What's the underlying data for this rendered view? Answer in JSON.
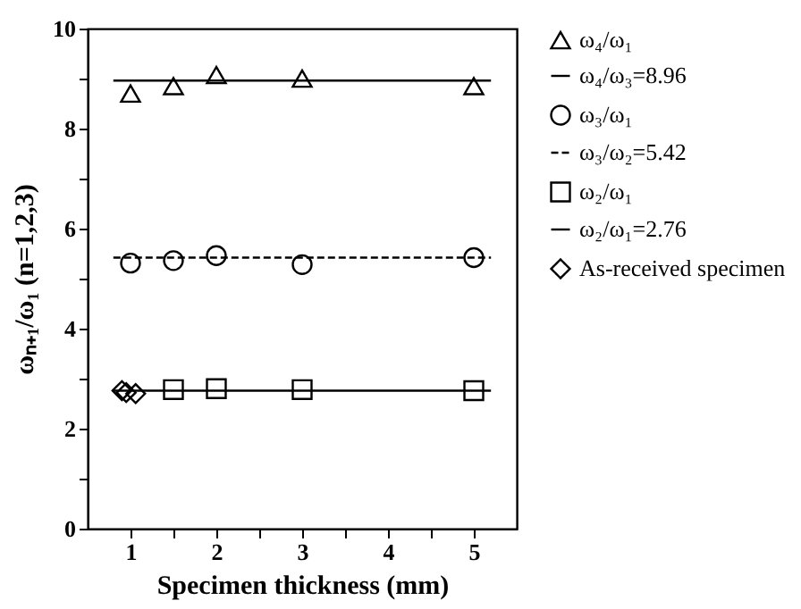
{
  "chart_data": {
    "type": "scatter",
    "xlabel": "Specimen thickness (mm)",
    "ylabel": "ωₙ₊₁/ω₁ (n=1,2,3)",
    "xlim": [
      0.5,
      5.5
    ],
    "ylim": [
      0,
      10
    ],
    "xticks": [
      1,
      {
        "value": 1.5,
        "label": null
      },
      2,
      {
        "value": 2.5,
        "label": null
      },
      3,
      {
        "value": 3.5,
        "label": null
      },
      4,
      {
        "value": 4.5,
        "label": null
      },
      5
    ],
    "yticks": [
      0,
      {
        "value": 1,
        "label": null
      },
      2,
      {
        "value": 3,
        "label": null
      },
      4,
      {
        "value": 5,
        "label": null
      },
      6,
      {
        "value": 7,
        "label": null
      },
      8,
      {
        "value": 9,
        "label": null
      },
      10
    ],
    "grid": false,
    "legend": "right",
    "series": [
      {
        "name": "ω₄/ω₁",
        "type": "scatter",
        "marker": "triangle",
        "color": "#000000",
        "x": [
          1,
          1.5,
          2,
          3,
          5
        ],
        "values": [
          8.7,
          8.85,
          9.07,
          9.0,
          8.85
        ]
      },
      {
        "name": "ω₄/ω₃=8.96",
        "type": "line",
        "line_style": "solid",
        "color": "#000000",
        "x": [
          0.8,
          5.2
        ],
        "values": [
          8.96,
          8.96
        ]
      },
      {
        "name": "ω₃/ω₁",
        "type": "scatter",
        "marker": "circle",
        "color": "#000000",
        "x": [
          1,
          1.5,
          2,
          3,
          5
        ],
        "values": [
          5.31,
          5.36,
          5.46,
          5.28,
          5.42
        ]
      },
      {
        "name": "ω₃/ω₂=5.42",
        "type": "line",
        "line_style": "dashed",
        "color": "#000000",
        "x": [
          0.8,
          5.2
        ],
        "values": [
          5.42,
          5.42
        ]
      },
      {
        "name": "ω₂/ω₁",
        "type": "scatter",
        "marker": "square",
        "color": "#000000",
        "x": [
          1.5,
          2,
          3,
          5
        ],
        "values": [
          2.78,
          2.8,
          2.78,
          2.76
        ]
      },
      {
        "name": "ω₂/ω₁=2.76",
        "type": "line",
        "line_style": "solid",
        "color": "#000000",
        "x": [
          0.8,
          5.2
        ],
        "values": [
          2.76,
          2.76
        ]
      },
      {
        "name": "As-received specimen",
        "type": "scatter",
        "marker": "diamond",
        "color": "#000000",
        "x": [
          0.9,
          0.95,
          1.06
        ],
        "values": [
          2.76,
          2.72,
          2.7
        ]
      }
    ]
  }
}
